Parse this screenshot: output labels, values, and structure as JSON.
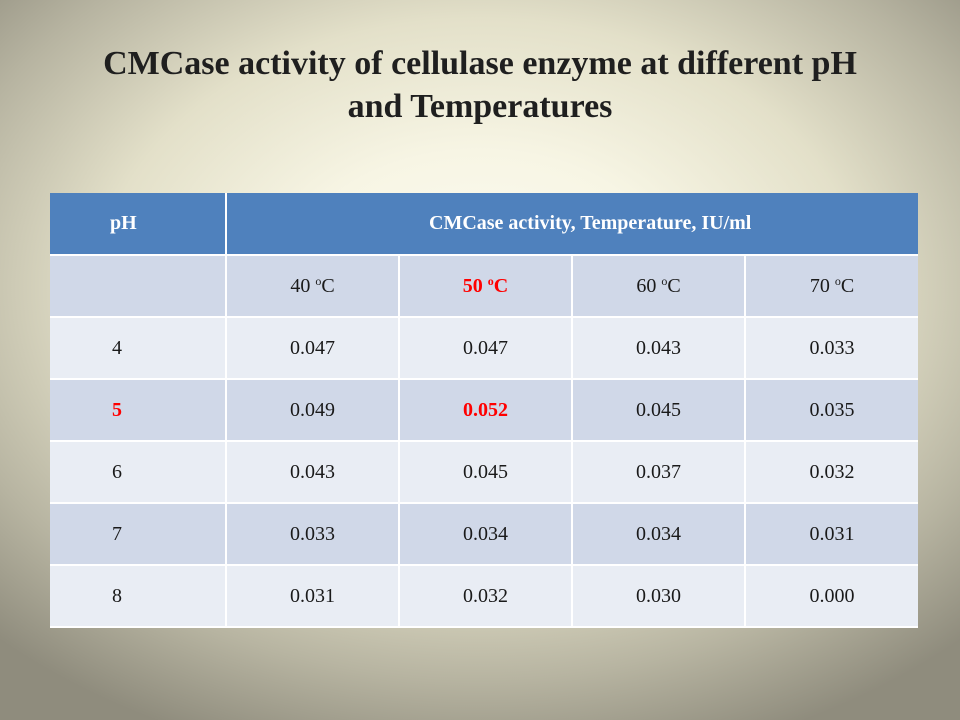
{
  "title": {
    "line1": "CMCase activity of cellulase enzyme at different pH",
    "line2": "and Temperatures"
  },
  "table": {
    "header": {
      "ph": "pH",
      "activity": "CMCase activity,  Temperature, IU/ml"
    },
    "temperatures": [
      {
        "value": "40 ",
        "deg": "o",
        "unit": "C"
      },
      {
        "value": "50 ",
        "deg": "o",
        "unit": "C"
      },
      {
        "value": "60 ",
        "deg": "o",
        "unit": "C"
      },
      {
        "value": "70 ",
        "deg": "o",
        "unit": "C"
      }
    ],
    "rows": [
      {
        "ph": "4",
        "values": [
          "0.047",
          "0.047",
          "0.043",
          "0.033"
        ]
      },
      {
        "ph": "5",
        "values": [
          "0.049",
          "0.052",
          "0.045",
          "0.035"
        ]
      },
      {
        "ph": "6",
        "values": [
          "0.043",
          "0.045",
          "0.037",
          "0.032"
        ]
      },
      {
        "ph": "7",
        "values": [
          "0.033",
          "0.034",
          "0.034",
          "0.031"
        ]
      },
      {
        "ph": "8",
        "values": [
          "0.031",
          "0.032",
          "0.030",
          "0.000"
        ]
      }
    ],
    "highlight_color": "#ff0000",
    "header_color": "#4f81bd",
    "band_color_dark": "#d0d8e8",
    "band_color_light": "#e9edf4"
  }
}
